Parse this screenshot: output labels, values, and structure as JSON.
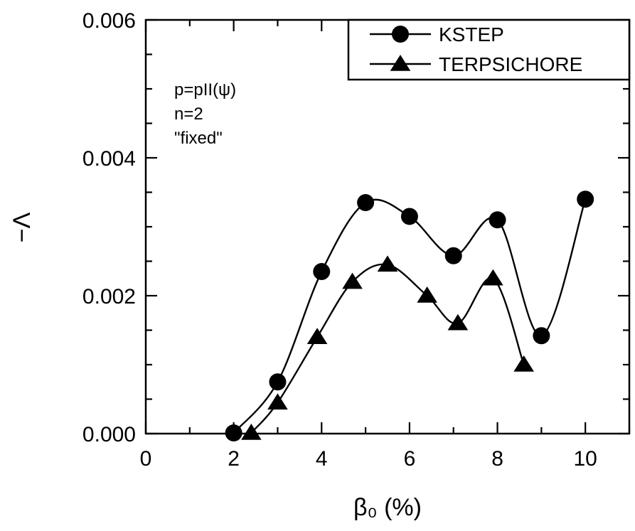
{
  "chart_data": {
    "type": "line",
    "title": "",
    "xlabel": "β₀ (%)",
    "ylabel": "−Λ",
    "xlim": [
      0,
      11
    ],
    "ylim": [
      0.0,
      0.006
    ],
    "x_ticks": [
      {
        "value": 0,
        "label": "0"
      },
      {
        "value": 2,
        "label": "2"
      },
      {
        "value": 4,
        "label": "4"
      },
      {
        "value": 6,
        "label": "6"
      },
      {
        "value": 8,
        "label": "8"
      },
      {
        "value": 10,
        "label": "10"
      }
    ],
    "y_ticks": [
      {
        "value": 0.0,
        "label": "0.000"
      },
      {
        "value": 0.002,
        "label": "0.002"
      },
      {
        "value": 0.004,
        "label": "0.004"
      },
      {
        "value": 0.006,
        "label": "0.006"
      }
    ],
    "grid": false,
    "legend_position": "top-right",
    "annotations": [
      "p=pII(ψ)",
      "n=2",
      "\"fixed\""
    ],
    "series": [
      {
        "name": "KSTEP",
        "marker": "circle",
        "x": [
          2.0,
          3.0,
          4.0,
          5.0,
          6.0,
          7.0,
          8.0,
          9.0,
          10.0
        ],
        "y": [
          1e-05,
          0.00075,
          0.00235,
          0.00335,
          0.00315,
          0.00258,
          0.0031,
          0.00142,
          0.0034
        ]
      },
      {
        "name": "TERPSICHORE",
        "marker": "triangle",
        "x": [
          2.4,
          3.0,
          3.9,
          4.7,
          5.5,
          6.4,
          7.1,
          7.9,
          8.6
        ],
        "y": [
          1e-05,
          0.00045,
          0.0014,
          0.0022,
          0.00245,
          0.002,
          0.0016,
          0.00225,
          0.001
        ]
      }
    ]
  }
}
